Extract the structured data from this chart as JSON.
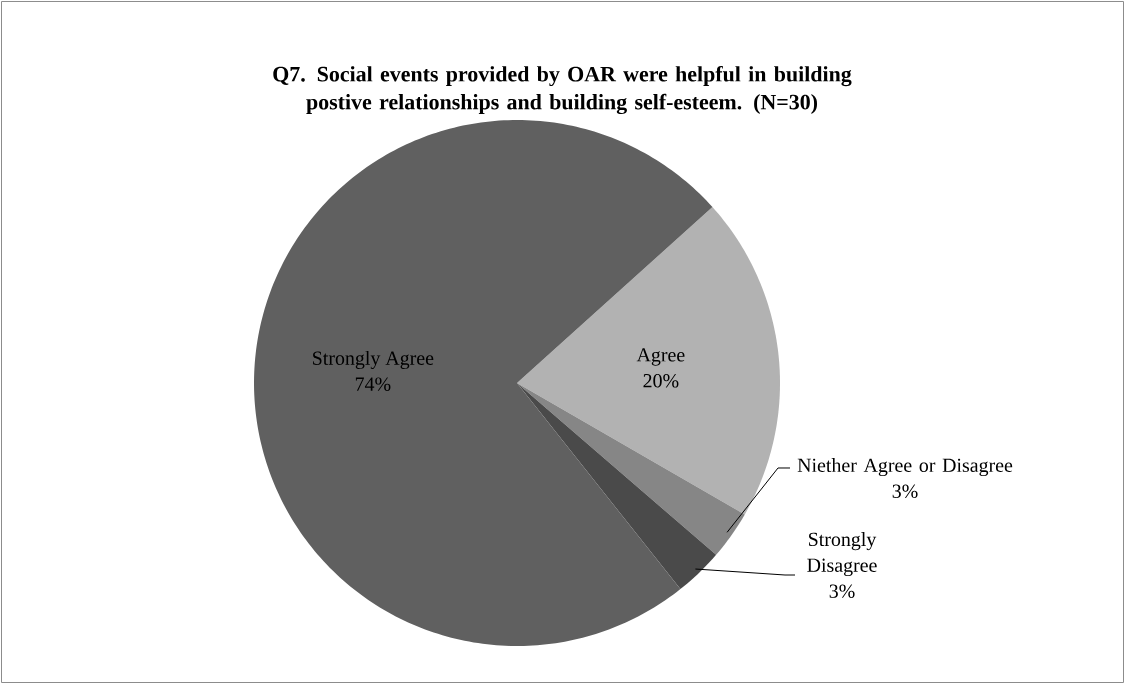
{
  "chart_data": {
    "type": "pie",
    "title": "Q7. Social events provided by OAR were helpful in building postive relationships and building self-esteem. (N=30)",
    "categories": [
      "Agree",
      "Niether Agree or Disagree",
      "Strongly Disagree",
      "Strongly Agree"
    ],
    "values": [
      20,
      3,
      3,
      74
    ],
    "colors": [
      "#b2b2b2",
      "#868686",
      "#4a4a4a",
      "#606060"
    ],
    "value_labels": [
      "20%",
      "3%",
      "3%",
      "74%"
    ]
  }
}
